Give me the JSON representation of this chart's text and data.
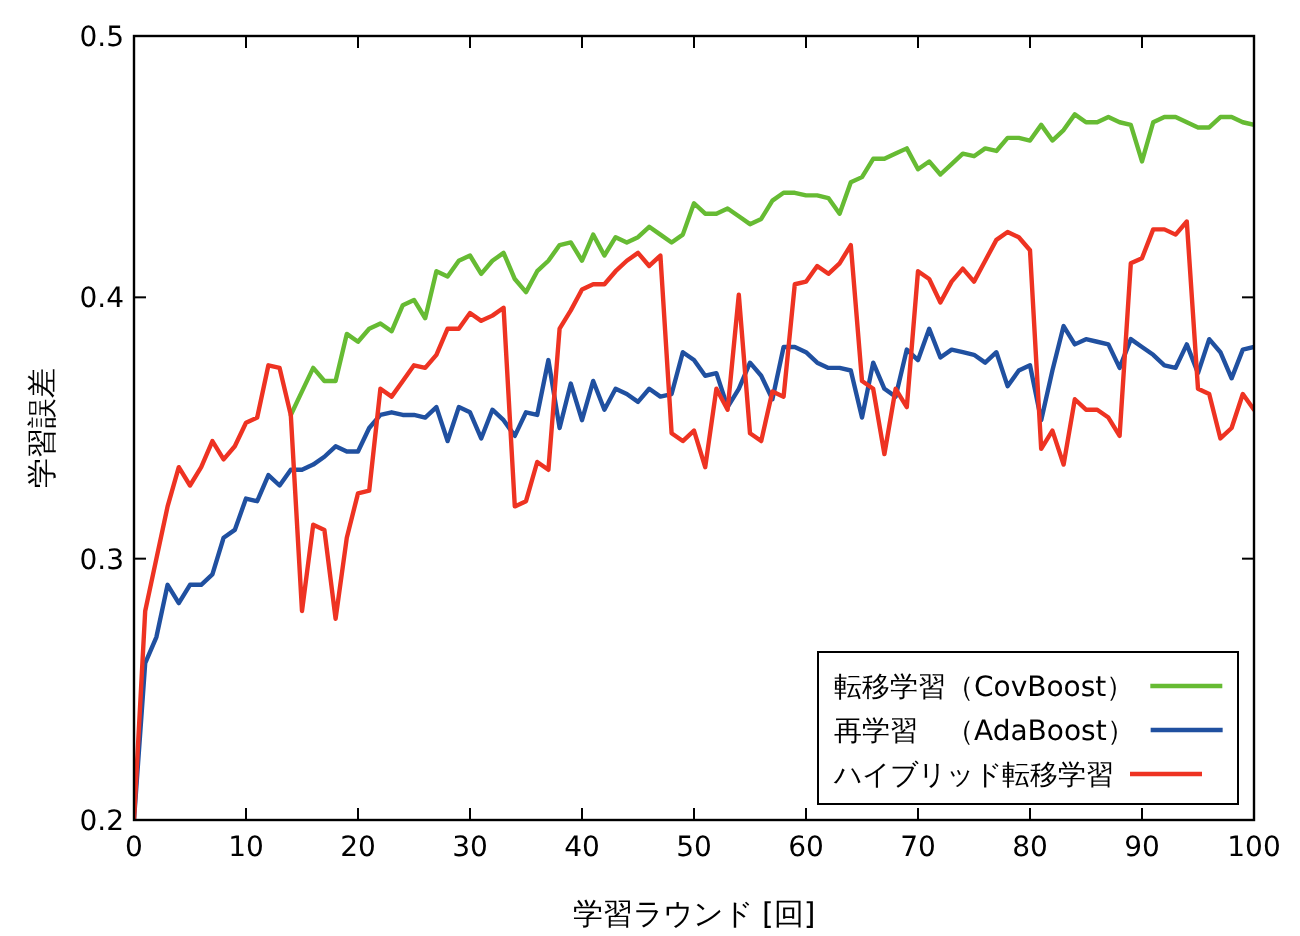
{
  "chart_data": {
    "type": "line",
    "xlabel": "学習ラウンド [回]",
    "ylabel": "学習誤差",
    "x": [
      0,
      1,
      2,
      3,
      4,
      5,
      6,
      7,
      8,
      9,
      10,
      11,
      12,
      13,
      14,
      15,
      16,
      17,
      18,
      19,
      20,
      21,
      22,
      23,
      24,
      25,
      26,
      27,
      28,
      29,
      30,
      31,
      32,
      33,
      34,
      35,
      36,
      37,
      38,
      39,
      40,
      41,
      42,
      43,
      44,
      45,
      46,
      47,
      48,
      49,
      50,
      51,
      52,
      53,
      54,
      55,
      56,
      57,
      58,
      59,
      60,
      61,
      62,
      63,
      64,
      65,
      66,
      67,
      68,
      69,
      70,
      71,
      72,
      73,
      74,
      75,
      76,
      77,
      78,
      79,
      80,
      81,
      82,
      83,
      84,
      85,
      86,
      87,
      88,
      89,
      90,
      91,
      92,
      93,
      94,
      95,
      96,
      97,
      98,
      99,
      100
    ],
    "xlim": [
      0,
      100
    ],
    "xticks": [
      0,
      10,
      20,
      30,
      40,
      50,
      60,
      70,
      80,
      90,
      100
    ],
    "ylim": [
      0.2,
      0.5
    ],
    "yticks": [
      0.2,
      0.3,
      0.4,
      0.5
    ],
    "legend": "bottom right",
    "line_style": "solid",
    "grid": false,
    "series": [
      {
        "name": "転移学習（CovBoost）",
        "color": "#66bb33",
        "values": [
          null,
          null,
          null,
          null,
          null,
          null,
          null,
          null,
          null,
          null,
          null,
          null,
          null,
          null,
          0.355,
          0.364,
          0.373,
          0.368,
          0.368,
          0.386,
          0.383,
          0.388,
          0.39,
          0.387,
          0.397,
          0.399,
          0.392,
          0.41,
          0.408,
          0.414,
          0.416,
          0.409,
          0.414,
          0.417,
          0.407,
          0.402,
          0.41,
          0.414,
          0.42,
          0.421,
          0.414,
          0.424,
          0.416,
          0.423,
          0.421,
          0.423,
          0.427,
          0.424,
          0.421,
          0.424,
          0.436,
          0.432,
          0.432,
          0.434,
          0.431,
          0.428,
          0.43,
          0.437,
          0.44,
          0.44,
          0.439,
          0.439,
          0.438,
          0.432,
          0.444,
          0.446,
          0.453,
          0.453,
          0.455,
          0.457,
          0.449,
          0.452,
          0.447,
          0.451,
          0.455,
          0.454,
          0.457,
          0.456,
          0.461,
          0.461,
          0.46,
          0.466,
          0.46,
          0.464,
          0.47,
          0.467,
          0.467,
          0.469,
          0.467,
          0.466,
          0.452,
          0.467,
          0.469,
          0.469,
          0.467,
          0.465,
          0.465,
          0.469,
          0.469,
          0.467,
          0.466
        ]
      },
      {
        "name": "再学習　（AdaBoost）",
        "color": "#2050a0",
        "values": [
          0.2,
          0.26,
          0.27,
          0.29,
          0.283,
          0.29,
          0.29,
          0.294,
          0.308,
          0.311,
          0.323,
          0.322,
          0.332,
          0.328,
          0.334,
          0.334,
          0.336,
          0.339,
          0.343,
          0.341,
          0.341,
          0.35,
          0.355,
          0.356,
          0.355,
          0.355,
          0.354,
          0.358,
          0.345,
          0.358,
          0.356,
          0.346,
          0.357,
          0.353,
          0.347,
          0.356,
          0.355,
          0.376,
          0.35,
          0.367,
          0.353,
          0.368,
          0.357,
          0.365,
          0.363,
          0.36,
          0.365,
          0.362,
          0.363,
          0.379,
          0.376,
          0.37,
          0.371,
          0.358,
          0.365,
          0.375,
          0.37,
          0.361,
          0.381,
          0.381,
          0.379,
          0.375,
          0.373,
          0.373,
          0.372,
          0.354,
          0.375,
          0.365,
          0.362,
          0.38,
          0.376,
          0.388,
          0.377,
          0.38,
          0.379,
          0.378,
          0.375,
          0.379,
          0.366,
          0.372,
          0.374,
          0.353,
          0.372,
          0.389,
          0.382,
          0.384,
          0.383,
          0.382,
          0.373,
          0.384,
          0.381,
          0.378,
          0.374,
          0.373,
          0.382,
          0.371,
          0.384,
          0.379,
          0.369,
          0.38,
          0.381
        ]
      },
      {
        "name": "ハイブリッド転移学習",
        "color": "#ee3322",
        "values": [
          0.2,
          0.28,
          0.3,
          0.32,
          0.335,
          0.328,
          0.335,
          0.345,
          0.338,
          0.343,
          0.352,
          0.354,
          0.374,
          0.373,
          0.355,
          0.28,
          0.313,
          0.311,
          0.277,
          0.308,
          0.325,
          0.326,
          0.365,
          0.362,
          0.368,
          0.374,
          0.373,
          0.378,
          0.388,
          0.388,
          0.394,
          0.391,
          0.393,
          0.396,
          0.32,
          0.322,
          0.337,
          0.334,
          0.388,
          0.395,
          0.403,
          0.405,
          0.405,
          0.41,
          0.414,
          0.417,
          0.412,
          0.416,
          0.348,
          0.345,
          0.349,
          0.335,
          0.365,
          0.357,
          0.401,
          0.348,
          0.345,
          0.364,
          0.362,
          0.405,
          0.406,
          0.412,
          0.409,
          0.413,
          0.42,
          0.368,
          0.365,
          0.34,
          0.365,
          0.358,
          0.41,
          0.407,
          0.398,
          0.406,
          0.411,
          0.406,
          0.414,
          0.422,
          0.425,
          0.423,
          0.418,
          0.342,
          0.349,
          0.336,
          0.361,
          0.357,
          0.357,
          0.354,
          0.347,
          0.413,
          0.415,
          0.426,
          0.426,
          0.424,
          0.429,
          0.365,
          0.363,
          0.346,
          0.35,
          0.363,
          0.357
        ]
      }
    ]
  }
}
